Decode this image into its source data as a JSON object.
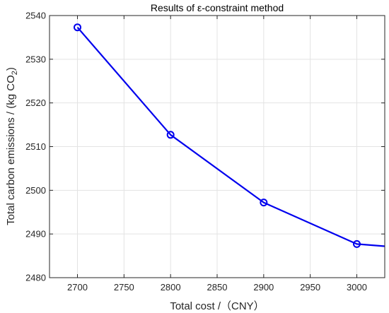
{
  "chart_data": {
    "type": "line",
    "title": "Results of ε-constraint method",
    "xlabel": "Total cost /（CNY）",
    "ylabel_prefix": "Total carbon emissions / (kg CO",
    "ylabel_subscript": "2",
    "ylabel_suffix": ")",
    "xlim": [
      2670,
      3030
    ],
    "ylim": [
      2480,
      2540
    ],
    "xticks": [
      2700,
      2750,
      2800,
      2850,
      2900,
      2950,
      3000
    ],
    "yticks": [
      2480,
      2490,
      2500,
      2510,
      2520,
      2530,
      2540
    ],
    "grid": true,
    "series": [
      {
        "color": "#0000ee",
        "marker": "circle",
        "x": [
          2700,
          2800,
          2900,
          3000,
          3030
        ],
        "y": [
          2537.3,
          2512.7,
          2497.2,
          2487.7,
          2487.2
        ],
        "marker_mask": [
          true,
          true,
          true,
          true,
          false
        ]
      }
    ]
  }
}
